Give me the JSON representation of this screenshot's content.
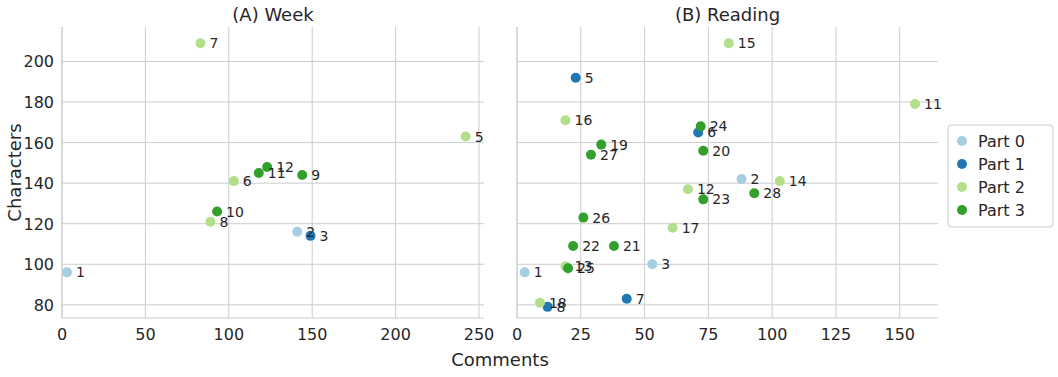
{
  "chart_data": [
    {
      "type": "scatter",
      "title": "(A) Week",
      "x_label": "Comments",
      "y_label": "Characters",
      "xlim": [
        0,
        253
      ],
      "xticks": [
        0,
        50,
        100,
        150,
        200,
        250
      ],
      "ylim": [
        73.5,
        217
      ],
      "yticks": [
        80,
        100,
        120,
        140,
        160,
        180,
        200
      ],
      "grid": true,
      "marker": "circle",
      "tick_labels": true,
      "series": [
        {
          "name": "Part 0",
          "color": "#a6cee3",
          "x": [
            3,
            141
          ],
          "values": [
            96,
            116
          ],
          "point_labels": [
            "1",
            "2"
          ]
        },
        {
          "name": "Part 1",
          "color": "#1f78b4",
          "x": [
            149
          ],
          "values": [
            114
          ],
          "point_labels": [
            "3"
          ]
        },
        {
          "name": "Part 2",
          "color": "#b2df8a",
          "x": [
            242,
            103,
            83,
            89
          ],
          "values": [
            163,
            141,
            209,
            121
          ],
          "point_labels": [
            "5",
            "6",
            "7",
            "8"
          ]
        },
        {
          "name": "Part 3",
          "color": "#33a02c",
          "x": [
            144,
            93,
            118,
            123
          ],
          "values": [
            144,
            126,
            145,
            148
          ],
          "point_labels": [
            "9",
            "10",
            "11",
            "12"
          ]
        }
      ]
    },
    {
      "type": "scatter",
      "title": "(B) Reading",
      "xlim": [
        0,
        165
      ],
      "xticks": [
        0,
        25,
        50,
        75,
        100,
        125,
        150
      ],
      "ylim": [
        73.5,
        217
      ],
      "yticks": [
        80,
        100,
        120,
        140,
        160,
        180,
        200
      ],
      "grid": true,
      "marker": "circle",
      "tick_labels": "x",
      "legend": "right",
      "series": [
        {
          "name": "Part 0",
          "color": "#a6cee3",
          "x": [
            3,
            88,
            53
          ],
          "values": [
            96,
            142,
            100
          ],
          "point_labels": [
            "1",
            "2",
            "3"
          ]
        },
        {
          "name": "Part 1",
          "color": "#1f78b4",
          "x": [
            23,
            71,
            43,
            12
          ],
          "values": [
            192,
            165,
            83,
            79
          ],
          "point_labels": [
            "5",
            "6",
            "7",
            "8"
          ]
        },
        {
          "name": "Part 2",
          "color": "#b2df8a",
          "x": [
            156,
            67,
            19,
            103,
            83,
            19,
            61,
            9
          ],
          "values": [
            179,
            137,
            99,
            141,
            209,
            171,
            118,
            81
          ],
          "point_labels": [
            "11",
            "12",
            "13",
            "14",
            "15",
            "16",
            "17",
            "18"
          ]
        },
        {
          "name": "Part 3",
          "color": "#33a02c",
          "x": [
            33,
            73,
            38,
            22,
            73,
            72,
            20,
            26,
            29,
            93
          ],
          "values": [
            159,
            156,
            109,
            109,
            132,
            168,
            98,
            123,
            154,
            135
          ],
          "point_labels": [
            "19",
            "20",
            "21",
            "22",
            "23",
            "24",
            "25",
            "26",
            "27",
            "28"
          ]
        }
      ]
    }
  ]
}
